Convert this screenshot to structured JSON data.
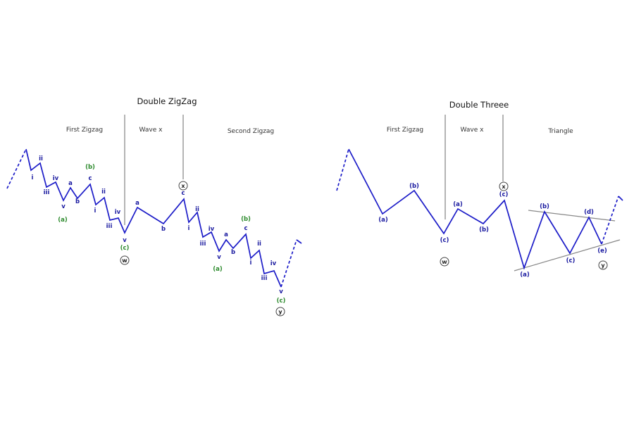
{
  "left": {
    "title": "Double ZigZag",
    "sections": [
      "First Zigzag",
      "Wave x",
      "Second Zigzag"
    ],
    "labels": [
      "i",
      "ii",
      "iii",
      "iv",
      "v",
      "(a)",
      "a",
      "b",
      "c",
      "(b)",
      "i",
      "ii",
      "iii",
      "iv",
      "v",
      "(c)",
      "a",
      "b",
      "c",
      "i",
      "ii",
      "iii",
      "iv",
      "v",
      "(a)",
      "a",
      "b",
      "c",
      "(b)",
      "i",
      "ii",
      "iii",
      "iv",
      "v",
      "(c)"
    ],
    "circled": [
      "w",
      "x",
      "y"
    ]
  },
  "right": {
    "title": "Double Threee",
    "sections": [
      "First Zigzag",
      "Wave x",
      "Triangle"
    ],
    "labels": [
      "(a)",
      "(b)",
      "(c)",
      "(a)",
      "(b)",
      "(c)",
      "(a)",
      "(b)",
      "(c)",
      "(d)",
      "(e)"
    ],
    "circled": [
      "w",
      "x",
      "y"
    ]
  }
}
